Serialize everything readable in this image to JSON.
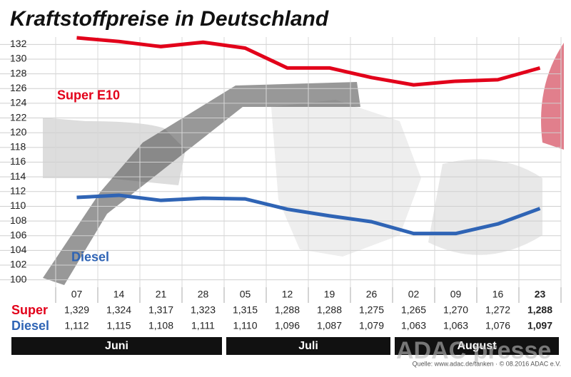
{
  "chart_data": {
    "type": "line",
    "title": "Kraftstoffpreise in Deutschland",
    "categories": [
      "07",
      "14",
      "21",
      "28",
      "05",
      "12",
      "19",
      "26",
      "02",
      "09",
      "16",
      "23"
    ],
    "series": [
      {
        "name": "Super E10",
        "color": "#e2001a",
        "values": [
          132.9,
          132.4,
          131.7,
          132.3,
          131.5,
          128.8,
          128.8,
          127.5,
          126.5,
          127.0,
          127.2,
          128.8
        ],
        "value_labels": [
          "1,329",
          "1,324",
          "1,317",
          "1,323",
          "1,315",
          "1,288",
          "1,288",
          "1,275",
          "1,265",
          "1,270",
          "1,272",
          "1,288"
        ]
      },
      {
        "name": "Diesel",
        "color": "#2f64b5",
        "values": [
          111.2,
          111.5,
          110.8,
          111.1,
          111.0,
          109.6,
          108.7,
          107.9,
          106.3,
          106.3,
          107.6,
          109.7
        ],
        "value_labels": [
          "1,112",
          "1,115",
          "1,108",
          "1,111",
          "1,110",
          "1,096",
          "1,087",
          "1,079",
          "1,063",
          "1,063",
          "1,076",
          "1,097"
        ]
      }
    ],
    "table_row_labels": [
      "Super",
      "Diesel"
    ],
    "months": [
      "Juni",
      "Juli",
      "August"
    ],
    "ylim": [
      99,
      133
    ],
    "yticks": [
      100,
      102,
      104,
      106,
      108,
      110,
      112,
      114,
      116,
      118,
      120,
      122,
      124,
      126,
      128,
      130,
      132
    ],
    "grid": true,
    "source": "Quelle: www.adac.de/tanken · © 08.2016 ADAC e.V.",
    "watermark": "ADAC presse"
  }
}
